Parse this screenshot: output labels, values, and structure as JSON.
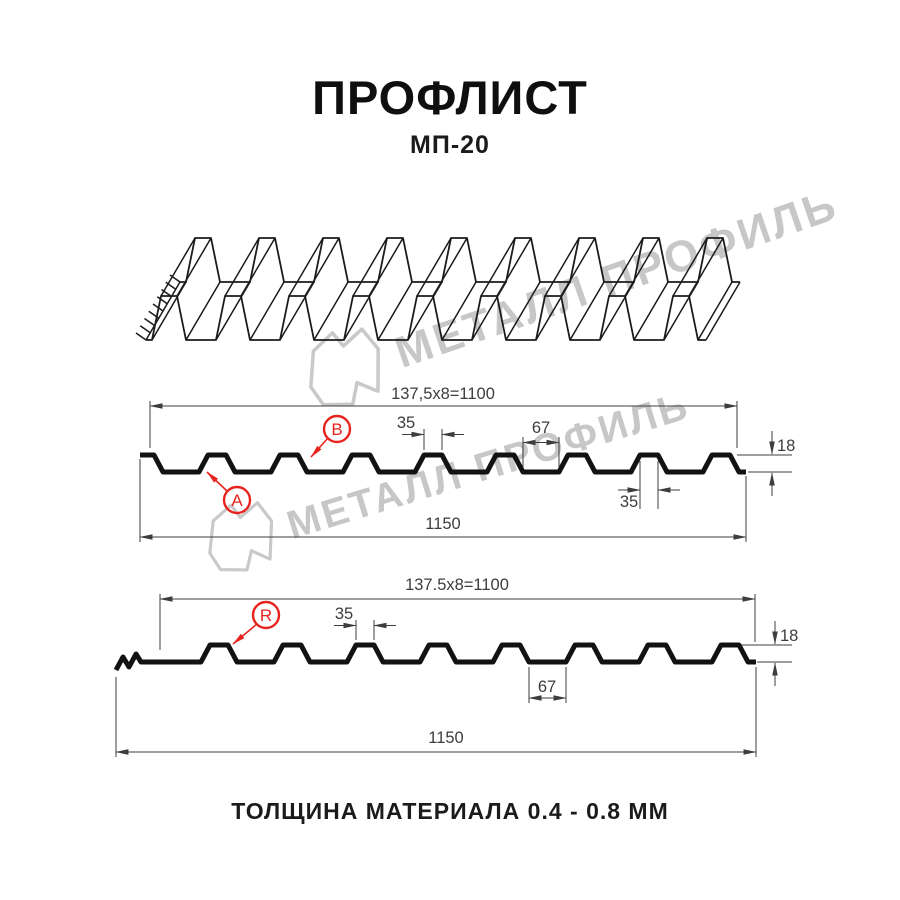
{
  "page": {
    "title": "ПРОФЛИСТ",
    "subtitle": "МП-20",
    "footer": "ТОЛЩИНА МАТЕРИАЛА 0.4 - 0.8 ММ"
  },
  "watermark": {
    "brand": "МЕТАЛЛ ПРОФИЛЬ"
  },
  "colors": {
    "accent_red": "#e8231d",
    "drawing_line": "#3d3d3d",
    "profile_line": "#121212",
    "watermark_gray": "#c7c7c7"
  },
  "section_a_b": {
    "labels": {
      "side_a": "A",
      "side_b": "B"
    },
    "dims": {
      "pitch": "137,5x8=1100",
      "rib_top": "35",
      "valley": "67",
      "rib_bottom": "35",
      "height": "18",
      "overall": "1150"
    }
  },
  "section_r": {
    "labels": {
      "side_r": "R"
    },
    "dims": {
      "pitch": "137.5x8=1100",
      "rib_top": "35",
      "valley": "67",
      "height": "18",
      "overall": "1150"
    }
  }
}
